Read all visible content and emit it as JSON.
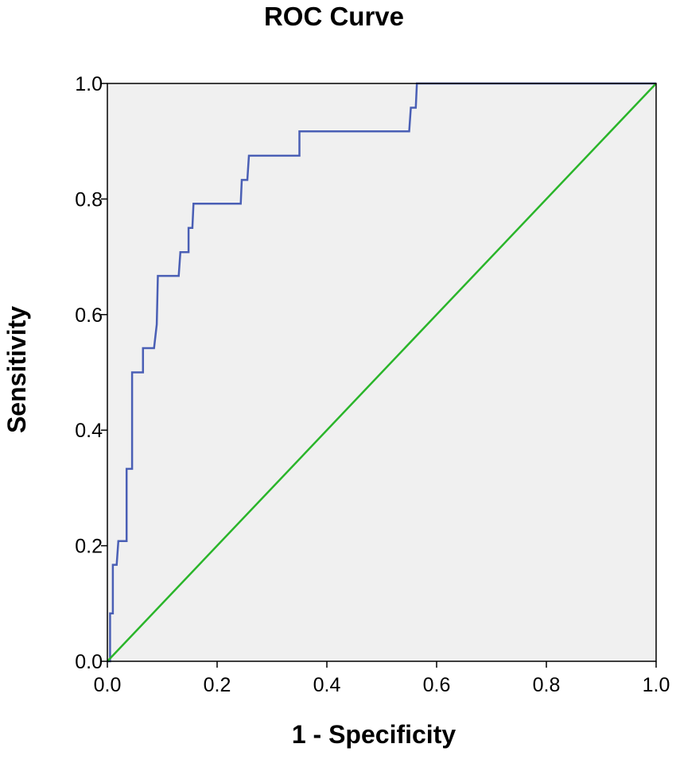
{
  "chart_data": {
    "type": "line",
    "title": "ROC Curve",
    "xlabel": "1 - Specificity",
    "ylabel": "Sensitivity",
    "xlim": [
      0,
      1
    ],
    "ylim": [
      0,
      1
    ],
    "x_ticks": [
      "0.0",
      "0.2",
      "0.4",
      "0.6",
      "0.8",
      "1.0"
    ],
    "y_ticks": [
      "0.0",
      "0.2",
      "0.4",
      "0.6",
      "0.8",
      "1.0"
    ],
    "grid": false,
    "plot_background": "#f0f0f0",
    "series": [
      {
        "color": "#4a5fb5",
        "points": [
          [
            0.0,
            0.0
          ],
          [
            0.005,
            0.0
          ],
          [
            0.005,
            0.083
          ],
          [
            0.01,
            0.083
          ],
          [
            0.01,
            0.167
          ],
          [
            0.017,
            0.167
          ],
          [
            0.02,
            0.208
          ],
          [
            0.035,
            0.208
          ],
          [
            0.035,
            0.333
          ],
          [
            0.045,
            0.333
          ],
          [
            0.045,
            0.5
          ],
          [
            0.065,
            0.5
          ],
          [
            0.065,
            0.542
          ],
          [
            0.085,
            0.542
          ],
          [
            0.09,
            0.583
          ],
          [
            0.092,
            0.667
          ],
          [
            0.13,
            0.667
          ],
          [
            0.133,
            0.708
          ],
          [
            0.148,
            0.708
          ],
          [
            0.148,
            0.75
          ],
          [
            0.155,
            0.75
          ],
          [
            0.157,
            0.792
          ],
          [
            0.243,
            0.792
          ],
          [
            0.245,
            0.833
          ],
          [
            0.255,
            0.833
          ],
          [
            0.258,
            0.875
          ],
          [
            0.35,
            0.875
          ],
          [
            0.35,
            0.917
          ],
          [
            0.55,
            0.917
          ],
          [
            0.553,
            0.958
          ],
          [
            0.562,
            0.958
          ],
          [
            0.564,
            1.0
          ],
          [
            1.0,
            1.0
          ]
        ]
      },
      {
        "color": "#2ab52a",
        "points": [
          [
            0,
            0
          ],
          [
            1,
            1
          ]
        ]
      }
    ]
  }
}
